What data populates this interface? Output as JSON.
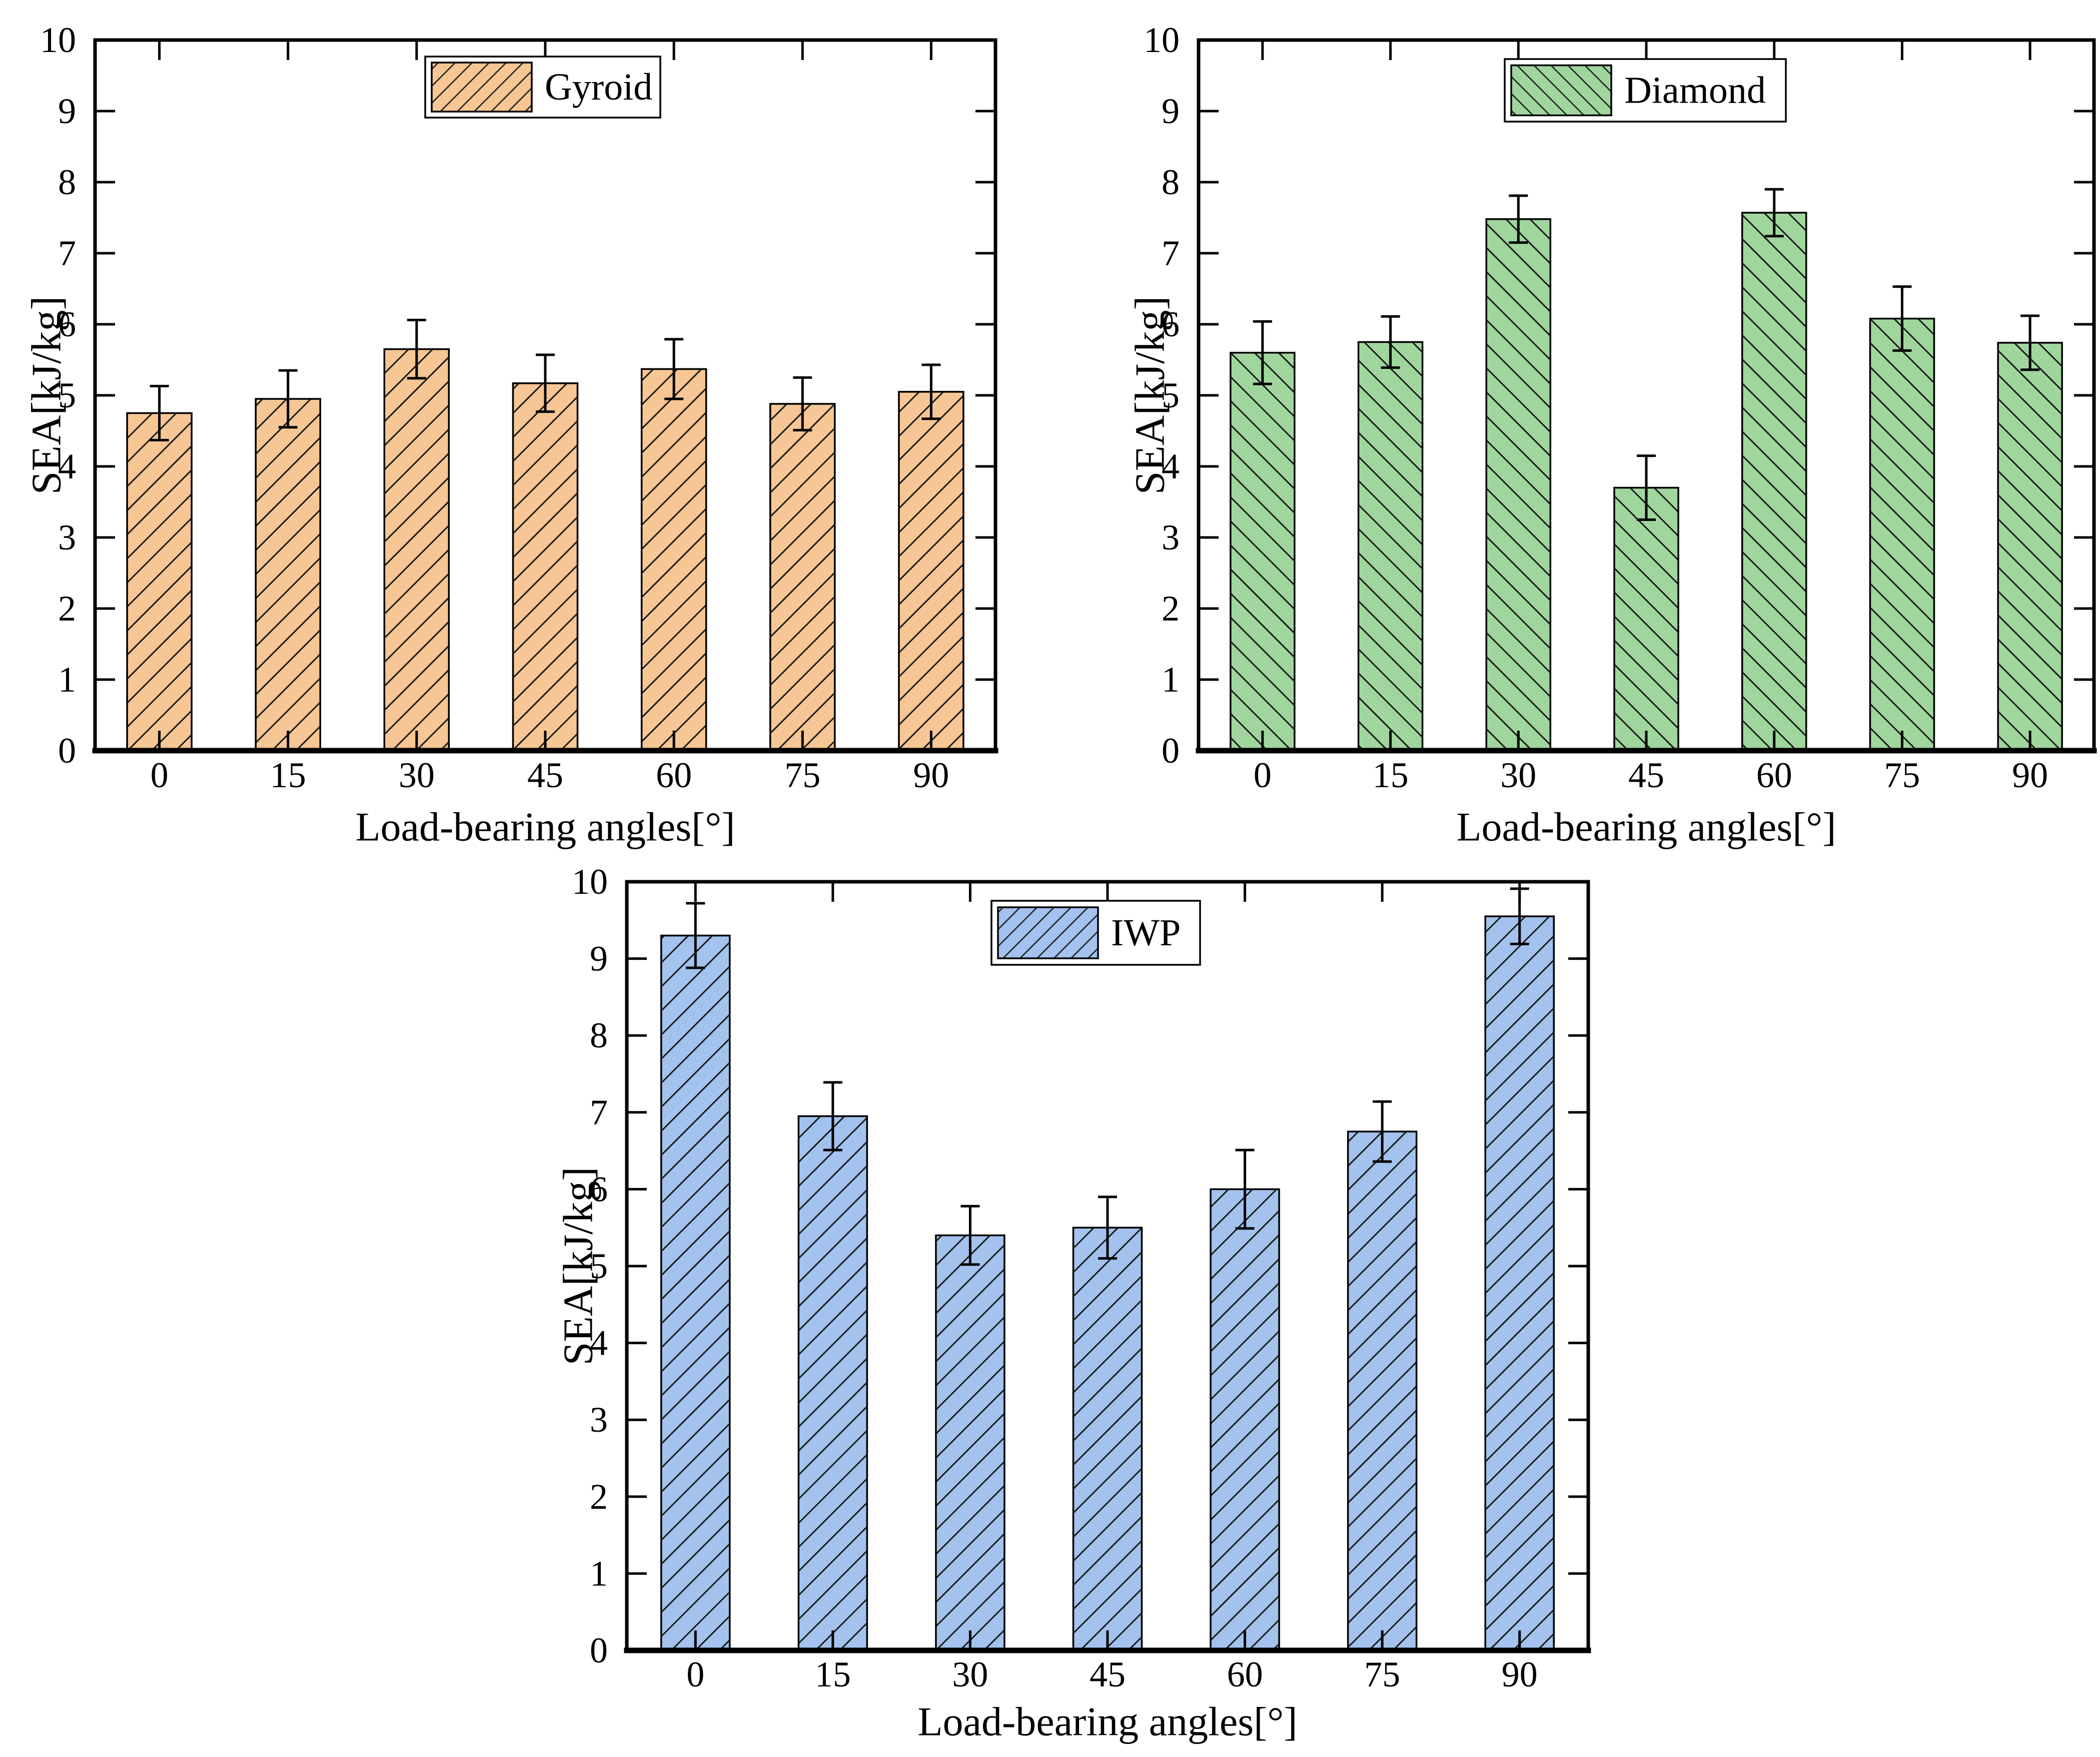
{
  "figure": {
    "background": "#ffffff",
    "text_color": "#000000",
    "frame_color": "#000000"
  },
  "chart_data": [
    {
      "name": "gyroid",
      "type": "bar",
      "legend": "Gyroid",
      "bar_color": "#F6C694",
      "hatch": "/",
      "edge_color": "#000000",
      "categories": [
        "0",
        "15",
        "30",
        "45",
        "60",
        "75",
        "90"
      ],
      "values": [
        4.75,
        4.95,
        5.65,
        5.17,
        5.37,
        4.88,
        5.05
      ],
      "errors": [
        0.38,
        0.4,
        0.41,
        0.4,
        0.42,
        0.37,
        0.38
      ],
      "xlabel": "Load-bearing angles[°]",
      "ylabel": "SEA[kJ/kg]",
      "ylim": [
        0,
        10
      ],
      "ytick_step": 1,
      "yticks": [
        0,
        1,
        2,
        3,
        4,
        5,
        6,
        7,
        8,
        9,
        10
      ],
      "grid": false,
      "legend_position": "top-center"
    },
    {
      "name": "diamond",
      "type": "bar",
      "legend": "Diamond",
      "bar_color": "#A0D69E",
      "hatch": "\\",
      "edge_color": "#000000",
      "categories": [
        "0",
        "15",
        "30",
        "45",
        "60",
        "75",
        "90"
      ],
      "values": [
        5.6,
        5.75,
        7.48,
        3.7,
        7.57,
        6.08,
        5.74
      ],
      "errors": [
        0.44,
        0.36,
        0.33,
        0.45,
        0.33,
        0.45,
        0.38
      ],
      "xlabel": "Load-bearing angles[°]",
      "ylabel": "SEA[kJ/kg]",
      "ylim": [
        0,
        10
      ],
      "ytick_step": 1,
      "yticks": [
        0,
        1,
        2,
        3,
        4,
        5,
        6,
        7,
        8,
        9,
        10
      ],
      "grid": false,
      "legend_position": "top-center"
    },
    {
      "name": "iwp",
      "type": "bar",
      "legend": "IWP",
      "bar_color": "#A3C2EE",
      "hatch": "/",
      "edge_color": "#000000",
      "categories": [
        "0",
        "15",
        "30",
        "45",
        "60",
        "75",
        "90"
      ],
      "values": [
        9.3,
        6.95,
        5.4,
        5.5,
        6.0,
        6.75,
        9.55
      ],
      "errors": [
        0.42,
        0.44,
        0.38,
        0.4,
        0.51,
        0.39,
        0.36
      ],
      "xlabel": "Load-bearing angles[°]",
      "ylabel": "SEA[kJ/kg]",
      "ylim": [
        0,
        10
      ],
      "ytick_step": 1,
      "yticks": [
        0,
        1,
        2,
        3,
        4,
        5,
        6,
        7,
        8,
        9,
        10
      ],
      "grid": false,
      "legend_position": "top-center"
    }
  ]
}
